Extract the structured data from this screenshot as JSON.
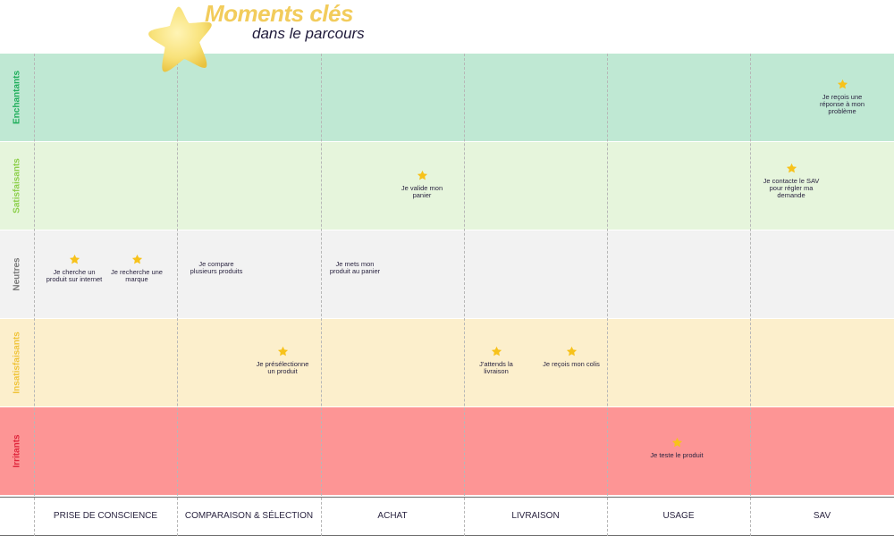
{
  "header": {
    "title": "Moments clés",
    "subtitle": "dans le parcours"
  },
  "colors": {
    "title": "#f2cc5c",
    "star": "#f7c21b",
    "star_big": "#f5dc6a"
  },
  "rows": [
    {
      "label": "Enchantants",
      "bg": "#bfe8d3",
      "label_color": "#1fae5b"
    },
    {
      "label": "Satisfaisants",
      "bg": "#e6f5dc",
      "label_color": "#8ccf4a"
    },
    {
      "label": "Neutres",
      "bg": "#f2f2f2",
      "label_color": "#7a7a7a"
    },
    {
      "label": "Insatisfaisants",
      "bg": "#fcefcc",
      "label_color": "#f0c43a"
    },
    {
      "label": "Irritants",
      "bg": "#fd9595",
      "label_color": "#e0263c"
    }
  ],
  "phases": [
    "PRISE DE CONSCIENCE",
    "COMPARAISON & SÉLECTION",
    "ACHAT",
    "LIVRAISON",
    "USAGE",
    "SAV"
  ],
  "moments": [
    {
      "text": "Je reçois une réponse à mon problème",
      "row": 0,
      "phase": 5
    },
    {
      "text": "Je valide mon panier",
      "row": 1,
      "phase": 2
    },
    {
      "text": "Je contacte le SAV pour régler ma demande",
      "row": 1,
      "phase": 5
    },
    {
      "text": "Je cherche un produit sur internet",
      "row": 2,
      "phase": 0
    },
    {
      "text": "Je recherche une marque",
      "row": 2,
      "phase": 0
    },
    {
      "text": "Je compare plusieurs produits",
      "row": 2,
      "phase": 1
    },
    {
      "text": "Je mets mon produit au panier",
      "row": 2,
      "phase": 2
    },
    {
      "text": "Je présélectionne un produit",
      "row": 3,
      "phase": 1
    },
    {
      "text": "J'attends la livraison",
      "row": 3,
      "phase": 3
    },
    {
      "text": "Je reçois mon colis",
      "row": 3,
      "phase": 3
    },
    {
      "text": "Je teste le produit",
      "row": 4,
      "phase": 4
    }
  ]
}
